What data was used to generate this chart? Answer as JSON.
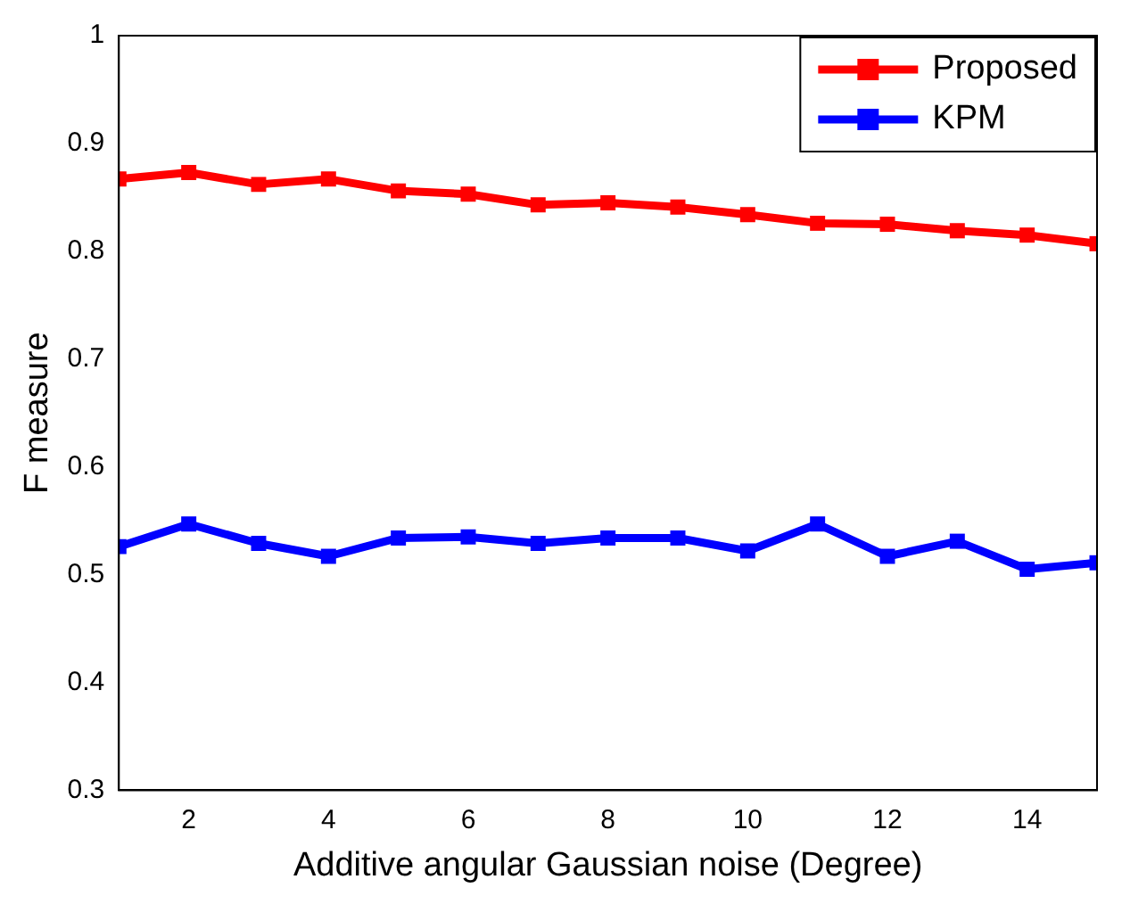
{
  "chart_data": {
    "type": "line",
    "xlabel": "Additive angular Gaussian noise (Degree)",
    "ylabel": "F measure",
    "x": [
      1,
      2,
      3,
      4,
      5,
      6,
      7,
      8,
      9,
      10,
      11,
      12,
      13,
      14,
      15
    ],
    "series": [
      {
        "name": "Proposed",
        "color": "#ff0000",
        "values": [
          0.867,
          0.873,
          0.862,
          0.867,
          0.856,
          0.853,
          0.843,
          0.845,
          0.841,
          0.834,
          0.826,
          0.825,
          0.819,
          0.815,
          0.807
        ]
      },
      {
        "name": "KPM",
        "color": "#0000ff",
        "values": [
          0.526,
          0.547,
          0.529,
          0.517,
          0.534,
          0.535,
          0.529,
          0.534,
          0.534,
          0.522,
          0.547,
          0.517,
          0.531,
          0.505,
          0.511
        ]
      }
    ],
    "xlim": [
      1,
      15
    ],
    "xticks": [
      2,
      4,
      6,
      8,
      10,
      12,
      14
    ],
    "ylim": [
      0.3,
      1
    ],
    "yticks": [
      0.3,
      0.4,
      0.5,
      0.6,
      0.7,
      0.8,
      0.9,
      1
    ],
    "grid": false,
    "legend": "top right",
    "marker": "square",
    "line_style": "solid"
  }
}
